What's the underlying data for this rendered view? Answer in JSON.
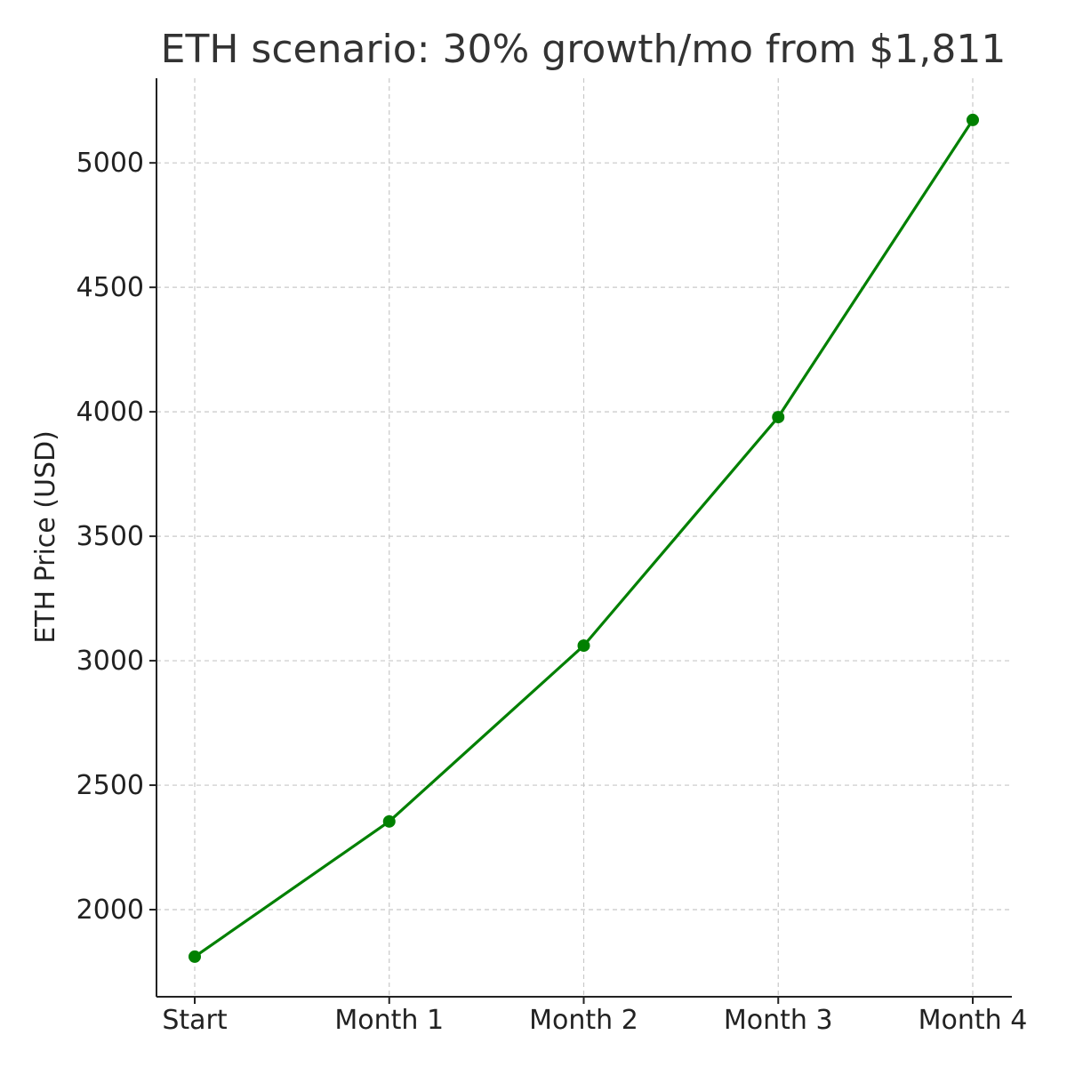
{
  "chart_data": {
    "type": "line",
    "title": "ETH scenario: 30% growth/mo from $1,811",
    "xlabel": "",
    "ylabel": "ETH Price (USD)",
    "categories": [
      "Start",
      "Month 1",
      "Month 2",
      "Month 3",
      "Month 4"
    ],
    "series": [
      {
        "values": [
          1811,
          2354.3,
          3060.59,
          3978.77,
          5172.4
        ],
        "color": "#008000",
        "marker": "circle"
      }
    ],
    "yticks": [
      2000,
      2500,
      3000,
      3500,
      4000,
      4500,
      5000
    ],
    "ylim": [
      1650,
      5340
    ],
    "grid": true,
    "legend": "none"
  }
}
